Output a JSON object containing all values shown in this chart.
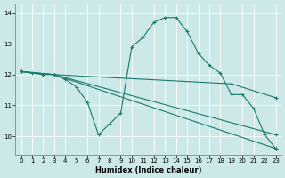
{
  "xlabel": "Humidex (Indice chaleur)",
  "bg_color": "#cce8e8",
  "grid_color": "#ffffff",
  "line_color": "#1a7a6e",
  "xlim": [
    -0.5,
    23.5
  ],
  "ylim": [
    9.4,
    14.3
  ],
  "xticks": [
    0,
    1,
    2,
    3,
    4,
    5,
    6,
    7,
    8,
    9,
    10,
    11,
    12,
    13,
    14,
    15,
    16,
    17,
    18,
    19,
    20,
    21,
    22,
    23
  ],
  "yticks": [
    10,
    11,
    12,
    13,
    14
  ],
  "series": [
    {
      "x": [
        0,
        1,
        2,
        3,
        4,
        5,
        6,
        7,
        8,
        9,
        10,
        11,
        12,
        13,
        14,
        15,
        16,
        17,
        18,
        19,
        20,
        21,
        22,
        23
      ],
      "y": [
        12.1,
        12.05,
        12.0,
        12.0,
        11.85,
        11.6,
        11.1,
        10.05,
        10.4,
        10.75,
        12.9,
        13.2,
        13.7,
        13.85,
        13.85,
        13.4,
        12.7,
        12.3,
        12.05,
        11.35,
        11.35,
        10.9,
        10.05,
        9.6
      ]
    },
    {
      "x": [
        0,
        3,
        23
      ],
      "y": [
        12.1,
        12.0,
        9.6
      ]
    },
    {
      "x": [
        0,
        3,
        23
      ],
      "y": [
        12.1,
        12.0,
        10.05
      ]
    },
    {
      "x": [
        0,
        3,
        19,
        23
      ],
      "y": [
        12.1,
        12.0,
        11.7,
        11.25
      ]
    }
  ]
}
